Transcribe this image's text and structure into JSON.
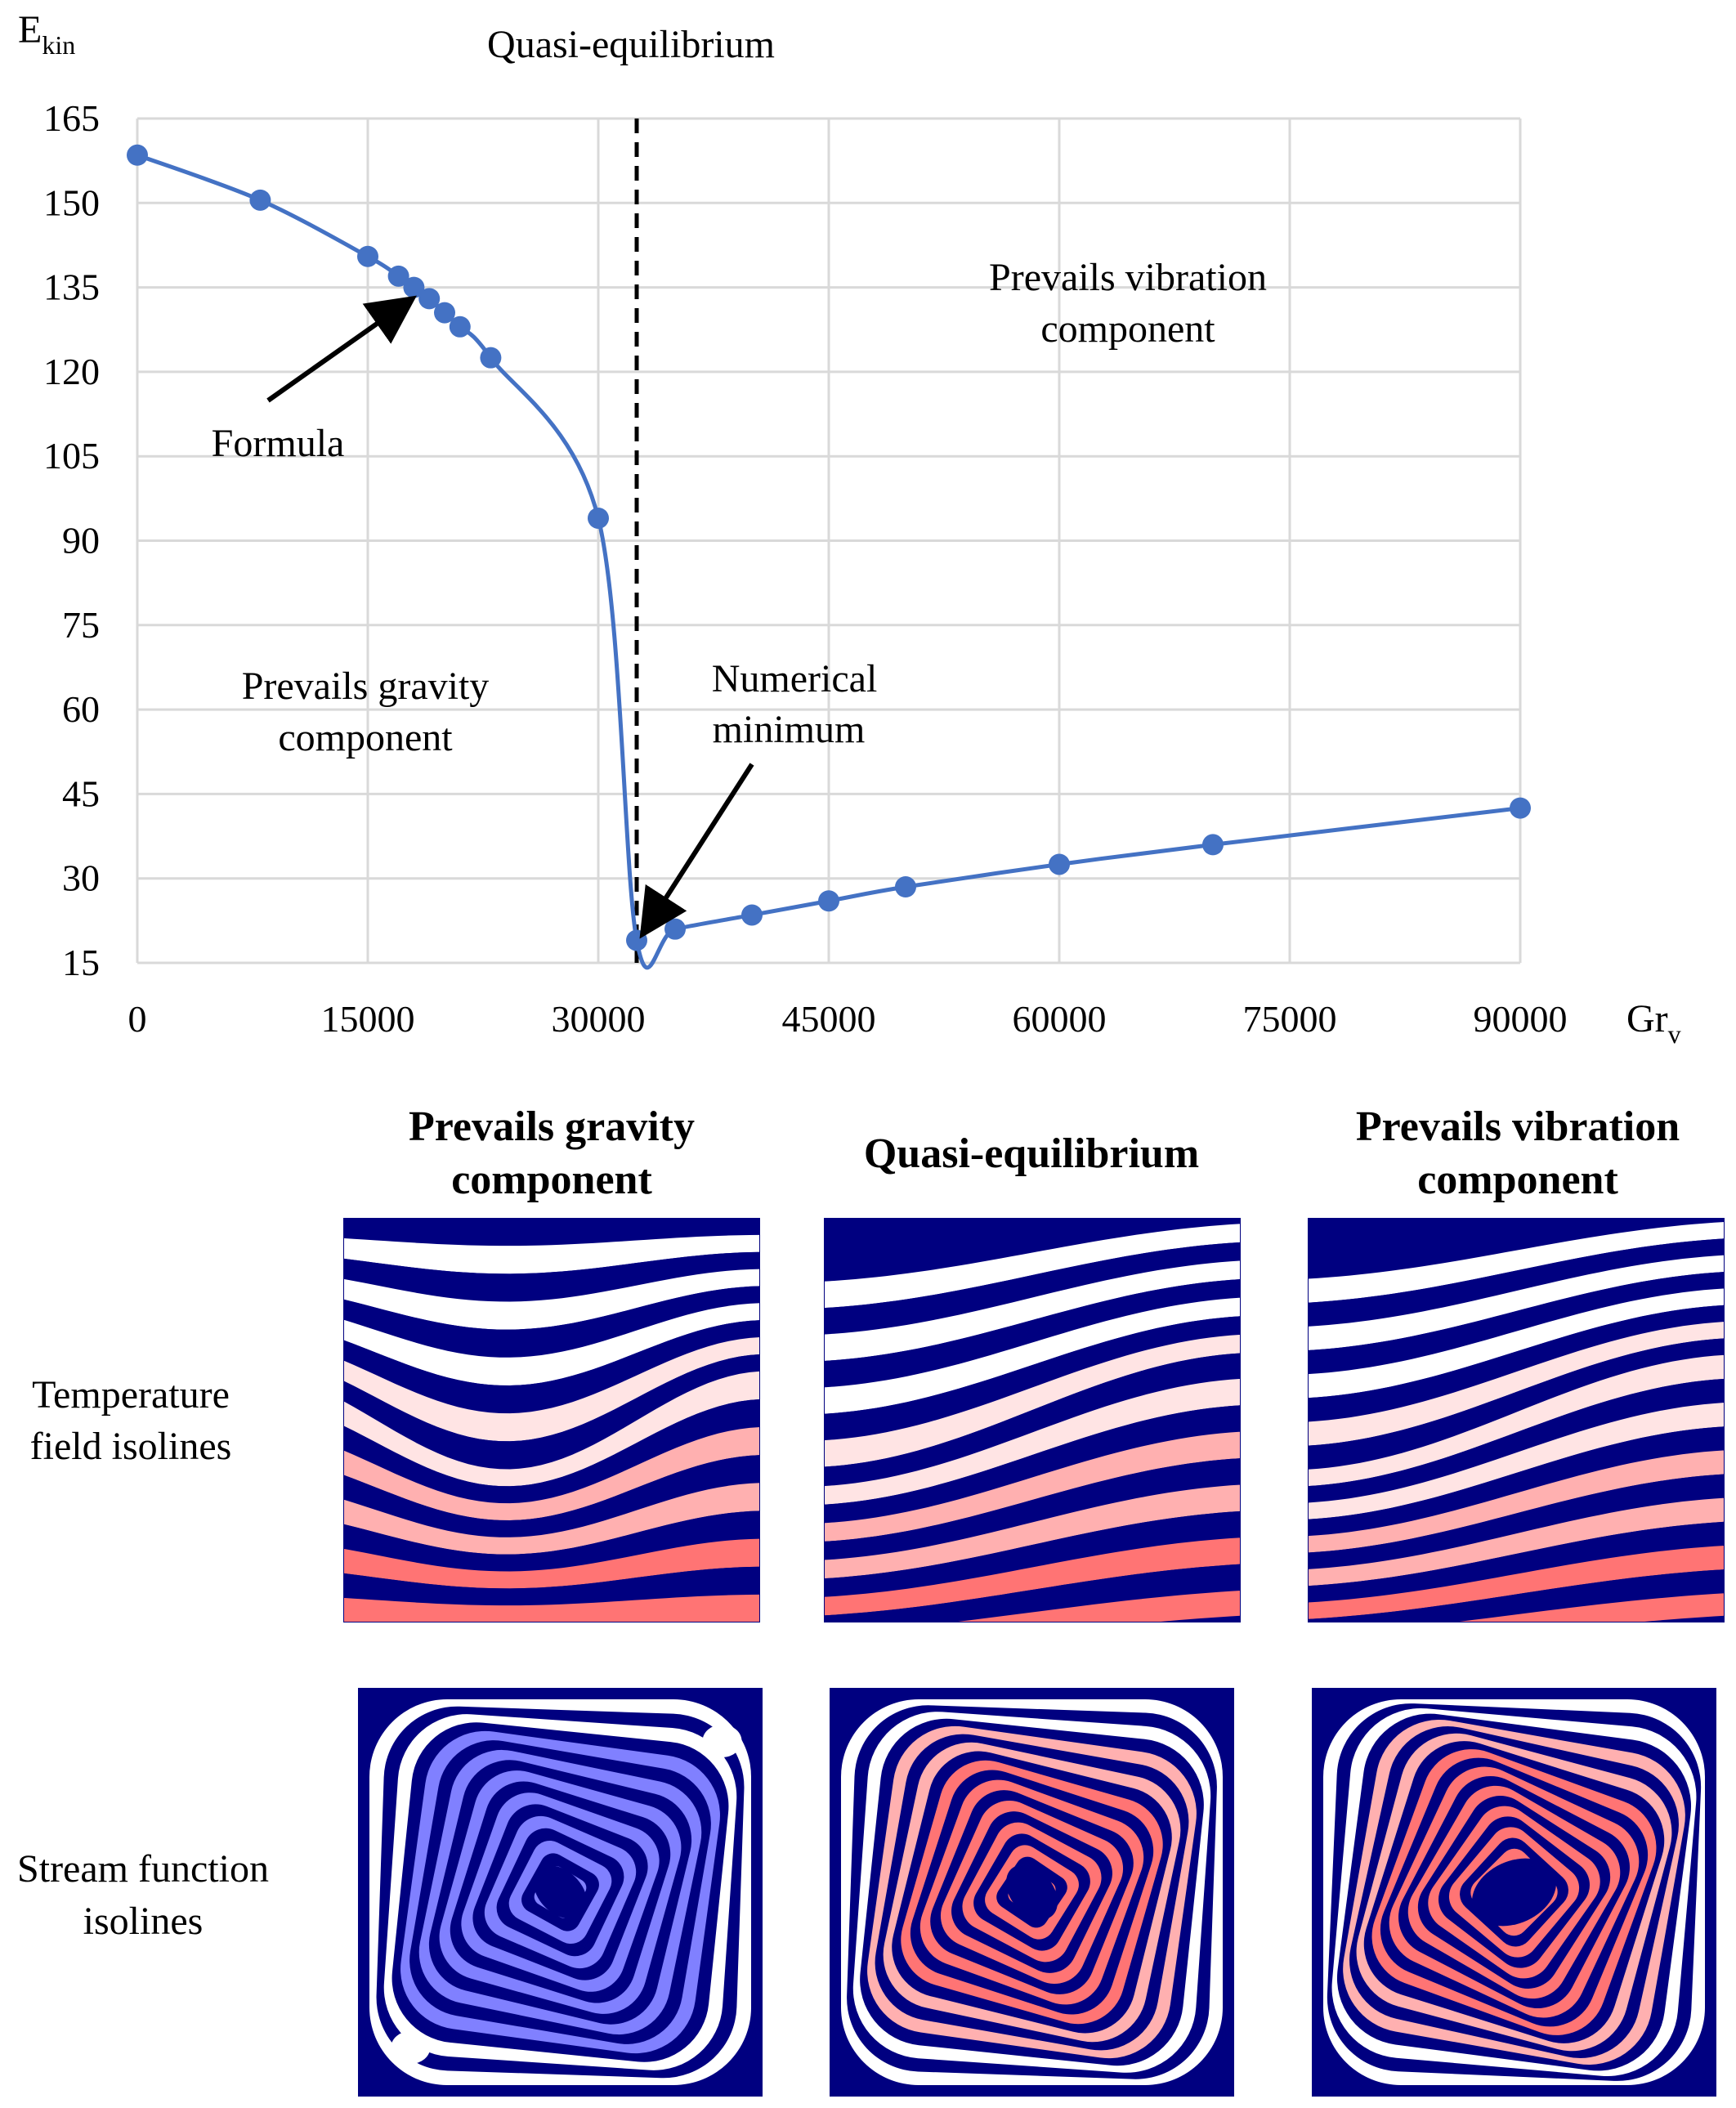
{
  "chart_data": {
    "type": "line",
    "title": "",
    "ylabel": "E",
    "ylabel_sub": "kin",
    "xlabel": "Gr",
    "xlabel_sub": "v",
    "xlim": [
      0,
      90000
    ],
    "ylim": [
      15,
      165
    ],
    "x_ticks": [
      0,
      15000,
      30000,
      45000,
      60000,
      75000,
      90000
    ],
    "y_ticks": [
      15,
      30,
      45,
      60,
      75,
      90,
      105,
      120,
      135,
      150,
      165
    ],
    "grid": true,
    "series": [
      {
        "name": "Ekin",
        "color": "#4472C4",
        "points": [
          [
            0,
            158.5
          ],
          [
            8000,
            150.5
          ],
          [
            15000,
            140.5
          ],
          [
            17000,
            137
          ],
          [
            18000,
            135
          ],
          [
            19000,
            133
          ],
          [
            20000,
            130.5
          ],
          [
            21000,
            128
          ],
          [
            23000,
            122.5
          ],
          [
            30000,
            94
          ],
          [
            32500,
            19
          ],
          [
            35000,
            21
          ],
          [
            40000,
            23.5
          ],
          [
            45000,
            26
          ],
          [
            50000,
            28.5
          ],
          [
            60000,
            32.5
          ],
          [
            70000,
            36
          ],
          [
            90000,
            42.5
          ]
        ]
      }
    ],
    "vline": {
      "x": 32500,
      "label": "Quasi-equilibrium"
    },
    "annotations": [
      {
        "id": "formula",
        "lines": [
          "Formula"
        ],
        "target": [
          18200,
          134
        ]
      },
      {
        "id": "numerical-minimum",
        "lines": [
          "Numerical",
          "minimum"
        ],
        "target": [
          32500,
          19
        ]
      },
      {
        "id": "prevails-gravity",
        "lines": [
          "Prevails gravity",
          "component"
        ]
      },
      {
        "id": "prevails-vibration",
        "lines": [
          "Prevails vibration",
          "component"
        ]
      }
    ]
  },
  "panels": {
    "column_headers": [
      [
        "Prevails gravity",
        "component"
      ],
      [
        "Quasi-equilibrium"
      ],
      [
        "Prevails vibration",
        "component"
      ]
    ],
    "row_labels": [
      [
        "Temperature",
        "field isolines"
      ],
      [
        "Stream function",
        "isolines"
      ]
    ],
    "colors": {
      "navy": "#000080",
      "white": "#ffffff",
      "light_pink": "#ffe4e4",
      "pink": "#ffb0b0",
      "salmon": "#ff7474",
      "periwinkle": "#8080ff"
    }
  }
}
